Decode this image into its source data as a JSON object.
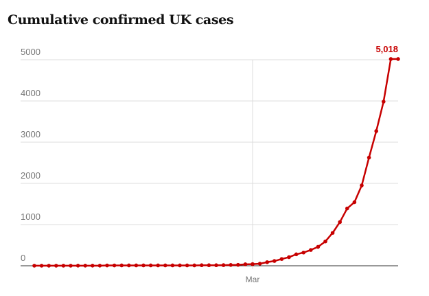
{
  "chart_data": {
    "type": "line",
    "title": "Cumulative confirmed UK cases",
    "xlabel": "",
    "ylabel": "",
    "ylim": [
      0,
      5000
    ],
    "yticks": [
      0,
      1000,
      2000,
      3000,
      4000,
      5000
    ],
    "xtick_labels": [
      "Mar"
    ],
    "grid": true,
    "line_color": "#c70000",
    "end_label": "5,018",
    "x_start": "2020-01-31",
    "x": [
      "2020-01-31",
      "2020-02-01",
      "2020-02-02",
      "2020-02-03",
      "2020-02-04",
      "2020-02-05",
      "2020-02-06",
      "2020-02-07",
      "2020-02-08",
      "2020-02-09",
      "2020-02-10",
      "2020-02-11",
      "2020-02-12",
      "2020-02-13",
      "2020-02-14",
      "2020-02-15",
      "2020-02-16",
      "2020-02-17",
      "2020-02-18",
      "2020-02-19",
      "2020-02-20",
      "2020-02-21",
      "2020-02-22",
      "2020-02-23",
      "2020-02-24",
      "2020-02-25",
      "2020-02-26",
      "2020-02-27",
      "2020-02-28",
      "2020-02-29",
      "2020-03-01",
      "2020-03-02",
      "2020-03-03",
      "2020-03-04",
      "2020-03-05",
      "2020-03-06",
      "2020-03-07",
      "2020-03-08",
      "2020-03-09",
      "2020-03-10",
      "2020-03-11",
      "2020-03-12",
      "2020-03-13",
      "2020-03-14",
      "2020-03-15",
      "2020-03-16",
      "2020-03-17",
      "2020-03-18",
      "2020-03-19",
      "2020-03-20",
      "2020-03-21"
    ],
    "series": [
      {
        "values": [
          2,
          2,
          2,
          2,
          2,
          2,
          3,
          3,
          3,
          3,
          8,
          8,
          9,
          9,
          9,
          9,
          9,
          9,
          9,
          9,
          9,
          9,
          9,
          13,
          13,
          13,
          15,
          20,
          23,
          36,
          40,
          51,
          87,
          116,
          164,
          209,
          278,
          321,
          383,
          460,
          590,
          798,
          1061,
          1391,
          1543,
          1950,
          2626,
          3269,
          3983,
          5018,
          5018
        ]
      }
    ]
  }
}
